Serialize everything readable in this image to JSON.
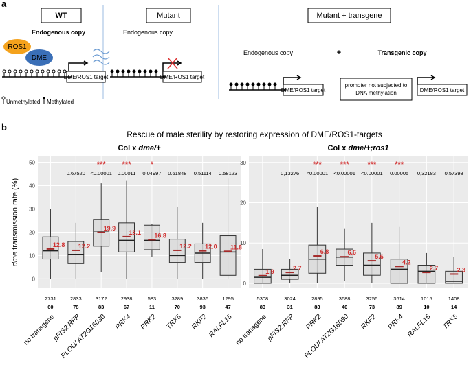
{
  "panel_a": {
    "label": "a",
    "wt": "WT",
    "mutant": "Mutant",
    "mutant_transgene": "Mutant + transgene",
    "endogenous": [
      "Endogenous copy",
      "Endogenous copy",
      "Endogenous copy"
    ],
    "transgenic": "Transgenic copy",
    "plus": "+",
    "ros1": "ROS1",
    "dme": "DME",
    "targets": [
      "DME/ROS1 target",
      "DME/ROS1 target",
      "DME/ROS1 target",
      "DME/ROS1 target"
    ],
    "promoter": [
      "promoter not subjected to",
      "DNA methylation"
    ],
    "unmethylated": "Unmethylated",
    "methylated": "Methylated"
  },
  "panel_b": {
    "label": "b",
    "title": "Rescue of male sterility by restoring expression of DME/ROS1-targets"
  },
  "chart_data": [
    {
      "type": "box",
      "title": [
        "Col x ",
        "dme/+"
      ],
      "ylabel": [
        "dme",
        " transmission rate (%)"
      ],
      "categories": [
        "no transgene",
        "pFIS2:RFP",
        "PLOU/ AT2G16030",
        "PRK4",
        "PRK2",
        "TRX5",
        "RKF2",
        "RALFL15"
      ],
      "q1": [
        8.5,
        6.5,
        14,
        11.5,
        12.5,
        7,
        7,
        1.5
      ],
      "median": [
        12,
        10.5,
        20.5,
        16.5,
        16.5,
        10,
        11,
        11.5
      ],
      "q3": [
        18,
        16,
        25.5,
        24,
        23,
        17,
        15,
        18.5
      ],
      "whisker_low": [
        0,
        0,
        3,
        0,
        9.5,
        0,
        0,
        0
      ],
      "whisker_high": [
        30,
        24,
        41,
        42,
        23.5,
        31,
        24,
        43
      ],
      "mean": [
        12.8,
        12.2,
        19.9,
        18.1,
        16.8,
        12.2,
        12,
        11.8
      ],
      "mean_labels": [
        "12.8",
        "12.2",
        "19.9",
        "18.1",
        "16.8",
        "12.2",
        "12.0",
        "11.8"
      ],
      "significance": [
        null,
        null,
        "***",
        "***",
        "*",
        null,
        null,
        null
      ],
      "p_values": [
        null,
        "0.67520",
        "<0.00001",
        "0.00011",
        "0.04997",
        "0.61848",
        "0.51114",
        "0.58123"
      ],
      "seeds": [
        2731,
        2833,
        3172,
        2938,
        583,
        3289,
        3836,
        1295
      ],
      "plants": [
        60,
        78,
        83,
        67,
        11,
        70,
        93,
        47
      ],
      "ylim": [
        -4,
        52.5
      ],
      "yticks": [
        0,
        10,
        20,
        30,
        40,
        50
      ],
      "color": "#d9d9d9",
      "mean_color": "#a52a2a",
      "label_color": "#d03030"
    },
    {
      "type": "box",
      "title": [
        "Col x ",
        "dme/+;ros1"
      ],
      "categories": [
        "no transgene",
        "pFIS2:RFP",
        "PRK2",
        "PLOU/ AT2G16030",
        "RKF2",
        "PRK4",
        "RALFL15",
        "TRX5"
      ],
      "q1": [
        0,
        1,
        2.5,
        4.5,
        2,
        0,
        0,
        0
      ],
      "median": [
        1.5,
        2,
        6,
        6.5,
        4.5,
        3.5,
        3,
        0.5
      ],
      "q3": [
        3.5,
        3.5,
        9.5,
        8.5,
        7.5,
        6,
        4.5,
        3
      ],
      "whisker_low": [
        0,
        0,
        0,
        0.5,
        0,
        0,
        0,
        0
      ],
      "whisker_high": [
        8.5,
        6,
        19,
        13.5,
        15,
        14,
        7.5,
        6.5
      ],
      "mean": [
        1.9,
        2.7,
        6.8,
        6.6,
        5.6,
        4.2,
        2.7,
        2.3
      ],
      "mean_labels": [
        "1.9",
        "2.7",
        "6.8",
        "6.6",
        "5.6",
        "4.2",
        "2.7",
        "2.3"
      ],
      "significance": [
        null,
        null,
        "***",
        "***",
        "***",
        "***",
        null,
        null
      ],
      "p_values": [
        null,
        "0,13276",
        "<0.00001",
        "<0.00001",
        "<0.00001",
        "0.00005",
        "0,32183",
        "0.57398"
      ],
      "seeds": [
        5308,
        3024,
        2895,
        3688,
        3256,
        3614,
        1015,
        1408
      ],
      "plants": [
        83,
        31,
        83,
        40,
        73,
        89,
        10,
        14
      ],
      "ylim": [
        -1.2,
        31.5
      ],
      "yticks": [
        0,
        10,
        20,
        30
      ],
      "color": "#d9d9d9",
      "mean_color": "#a52a2a",
      "label_color": "#d03030"
    }
  ]
}
